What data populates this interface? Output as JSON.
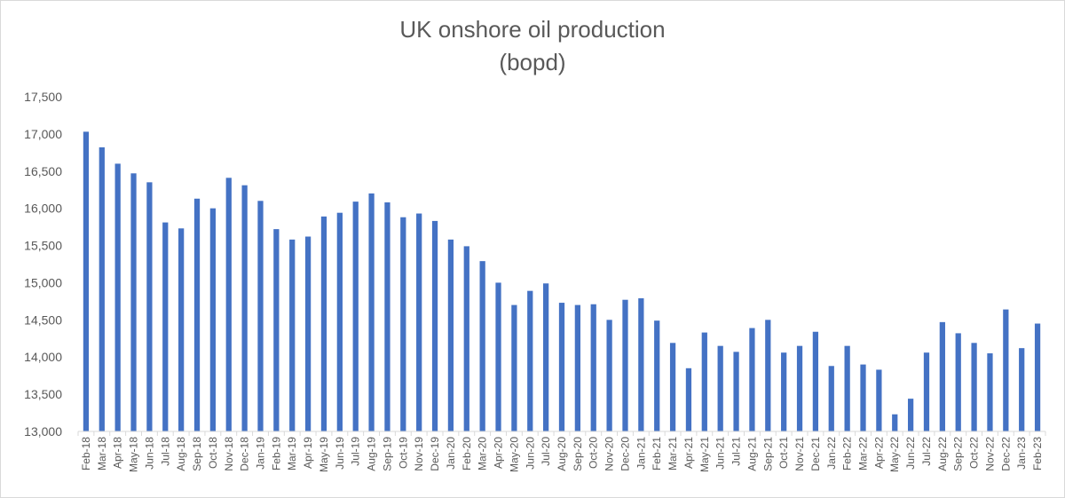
{
  "chart_data": {
    "type": "bar",
    "title": "UK onshore oil production",
    "subtitle": "(bopd)",
    "xlabel": "",
    "ylabel": "",
    "ylim": [
      13000,
      17500
    ],
    "yticks": [
      13000,
      13500,
      14000,
      14500,
      15000,
      15500,
      16000,
      16500,
      17000,
      17500
    ],
    "ytick_labels": [
      "13,000",
      "13,500",
      "14,000",
      "14,500",
      "15,000",
      "15,500",
      "16,000",
      "16,500",
      "17,000",
      "17,500"
    ],
    "grid": false,
    "bar_color": "#4472c4",
    "categories": [
      "Feb-18",
      "Mar-18",
      "Apr-18",
      "May-18",
      "Jun-18",
      "Jul-18",
      "Aug-18",
      "Sep-18",
      "Oct-18",
      "Nov-18",
      "Dec-18",
      "Jan-19",
      "Feb-19",
      "Mar-19",
      "Apr-19",
      "May-19",
      "Jun-19",
      "Jul-19",
      "Aug-19",
      "Sep-19",
      "Oct-19",
      "Nov-19",
      "Dec-19",
      "Jan-20",
      "Feb-20",
      "Mar-20",
      "Apr-20",
      "May-20",
      "Jun-20",
      "Jul-20",
      "Aug-20",
      "Sep-20",
      "Oct-20",
      "Nov-20",
      "Dec-20",
      "Jan-21",
      "Feb-21",
      "Mar-21",
      "Apr-21",
      "May-21",
      "Jun-21",
      "Jul-21",
      "Aug-21",
      "Sep-21",
      "Oct-21",
      "Nov-21",
      "Dec-21",
      "Jan-22",
      "Feb-22",
      "Mar-22",
      "Apr-22",
      "May-22",
      "Jun-22",
      "Jul-22",
      "Aug-22",
      "Sep-22",
      "Oct-22",
      "Nov-22",
      "Dec-22",
      "Jan-23",
      "Feb-23"
    ],
    "values": [
      17030,
      16820,
      16600,
      16470,
      16350,
      15810,
      15730,
      16130,
      16000,
      16410,
      16310,
      16100,
      15720,
      15580,
      15620,
      15890,
      15940,
      16090,
      16200,
      16080,
      15880,
      15930,
      15830,
      15580,
      15490,
      15290,
      15000,
      14700,
      14890,
      14990,
      14730,
      14700,
      14710,
      14500,
      14770,
      14790,
      14490,
      14190,
      13850,
      14330,
      14150,
      14070,
      14390,
      14500,
      14060,
      14150,
      14340,
      13880,
      14150,
      13900,
      13830,
      13230,
      13440,
      14060,
      14470,
      14320,
      14190,
      14050,
      14640,
      14120,
      14450
    ]
  }
}
